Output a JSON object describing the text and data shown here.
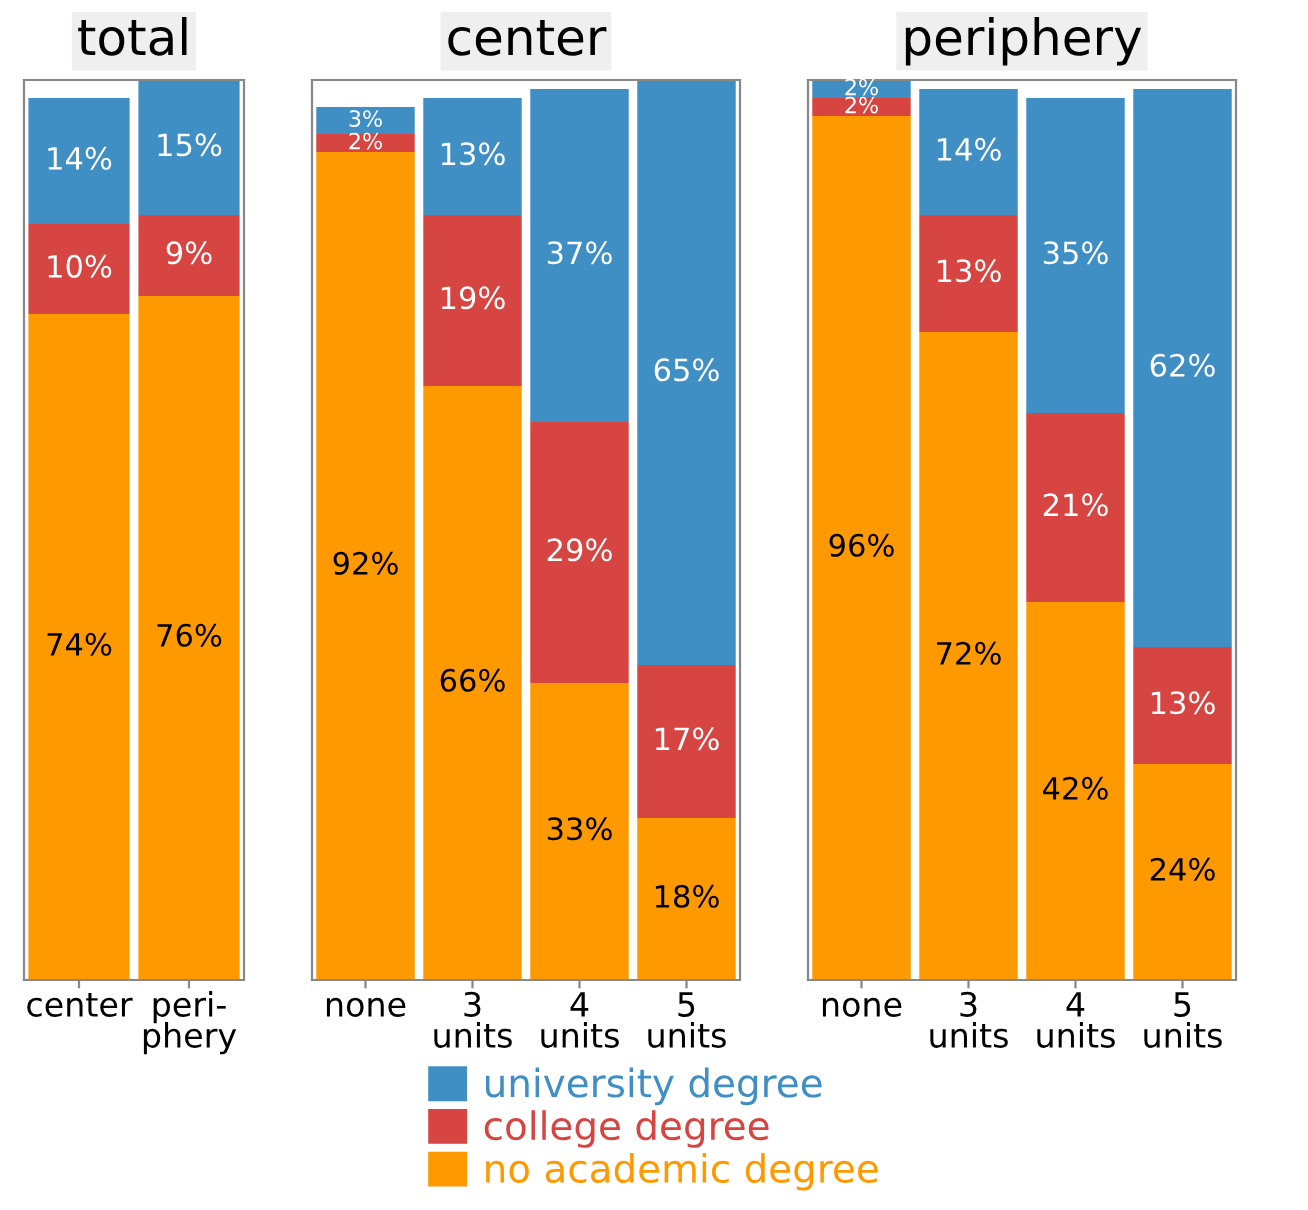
{
  "chart_data": [
    {
      "type": "bar",
      "title": "total",
      "stacked": true,
      "tick_labels": "x",
      "categories": [
        "center",
        "peri-\nphery"
      ],
      "series": [
        {
          "color": "#ff9900",
          "values": [
            74,
            76
          ],
          "value_labels": [
            "74%",
            "76%"
          ]
        },
        {
          "color": "#d64541",
          "values": [
            10,
            9
          ],
          "value_labels": [
            "10%",
            "9%"
          ]
        },
        {
          "color": "#3f8fc4",
          "values": [
            14,
            15
          ],
          "value_labels": [
            "14%",
            "15%"
          ]
        }
      ]
    },
    {
      "type": "bar",
      "title": "center",
      "stacked": true,
      "tick_labels": "x",
      "categories": [
        "none",
        "3\nunits",
        "4\nunits",
        "5\nunits"
      ],
      "series": [
        {
          "color": "#ff9900",
          "values": [
            92,
            66,
            33,
            18
          ],
          "value_labels": [
            "92%",
            "66%",
            "33%",
            "18%"
          ]
        },
        {
          "color": "#d64541",
          "values": [
            2,
            19,
            29,
            17
          ],
          "value_labels": [
            "2%",
            "19%",
            "29%",
            "17%"
          ]
        },
        {
          "color": "#3f8fc4",
          "values": [
            3,
            13,
            37,
            65
          ],
          "value_labels": [
            "3%",
            "13%",
            "37%",
            "65%"
          ]
        }
      ]
    },
    {
      "type": "bar",
      "title": "periphery",
      "stacked": true,
      "tick_labels": "x",
      "legend": "bottom",
      "categories": [
        "none",
        "3\nunits",
        "4\nunits",
        "5\nunits"
      ],
      "series": [
        {
          "name": "no academic degree",
          "color": "#ff9900",
          "values": [
            96,
            72,
            42,
            24
          ],
          "value_labels": [
            "96%",
            "72%",
            "42%",
            "24%"
          ]
        },
        {
          "name": "college degree",
          "color": "#d64541",
          "values": [
            2,
            13,
            21,
            13
          ],
          "value_labels": [
            "2%",
            "13%",
            "21%",
            "13%"
          ]
        },
        {
          "name": "university degree",
          "color": "#3f8fc4",
          "values": [
            2,
            14,
            35,
            62
          ],
          "value_labels": [
            "2%",
            "14%",
            "35%",
            "62%"
          ]
        }
      ]
    }
  ]
}
